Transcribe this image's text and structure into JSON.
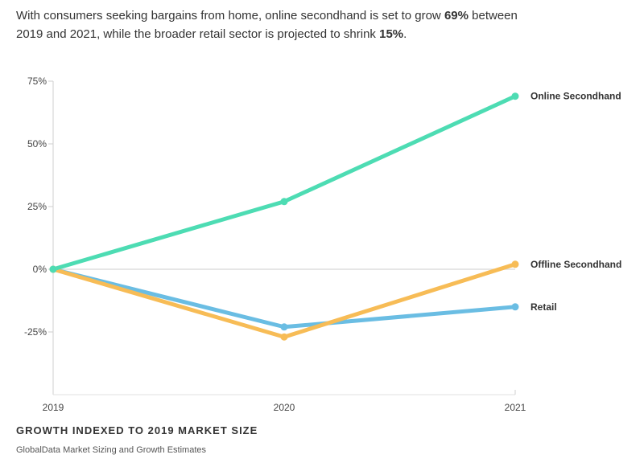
{
  "subtitle": {
    "part1": "With consumers seeking bargains from home, online secondhand is set to grow ",
    "bold1": "69%",
    "part2": " between 2019 and 2021, while the broader retail sector is projected to shrink ",
    "bold2": "15%",
    "part3": "."
  },
  "footer": {
    "title": "GROWTH INDEXED TO 2019 MARKET SIZE",
    "source": "GlobalData Market Sizing and Growth Estimates"
  },
  "chart_data": {
    "type": "line",
    "x": [
      "2019",
      "2020",
      "2021"
    ],
    "ylim": [
      -50,
      75
    ],
    "yticks": [
      75,
      50,
      25,
      0,
      -25
    ],
    "ytick_labels": [
      "75%",
      "50%",
      "25%",
      "0%",
      "-25%"
    ],
    "series": [
      {
        "name": "Online Secondhand",
        "color": "#4ddcb3",
        "values": [
          0,
          27,
          69
        ]
      },
      {
        "name": "Offline Secondhand",
        "color": "#f7bc56",
        "values": [
          0,
          -27,
          2
        ]
      },
      {
        "name": "Retail",
        "color": "#6abde3",
        "values": [
          0,
          -23,
          -15
        ]
      }
    ],
    "grid": false,
    "legend": "end-of-line labels"
  }
}
